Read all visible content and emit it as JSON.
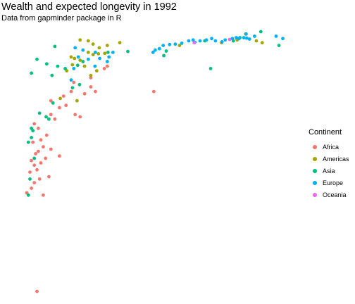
{
  "chart_data": {
    "type": "scatter",
    "title": "Wealth and expected longevity in 1992",
    "subtitle": "Data from gapminder package in R",
    "xlabel": "",
    "ylabel": "",
    "x_scale": "log",
    "xlim": [
      240,
      55000
    ],
    "ylim": [
      23,
      80
    ],
    "grid": false,
    "axes_visible": false,
    "legend": {
      "title": "Continent",
      "position": "right"
    },
    "x_field": "gdpPercap",
    "y_field": "lifeExp",
    "series": [
      {
        "name": "Africa",
        "color": "#F8766D",
        "points": [
          [
            400,
            23.6
          ],
          [
            330,
            45.0
          ],
          [
            360,
            46.0
          ],
          [
            450,
            44.5
          ],
          [
            380,
            47.2
          ],
          [
            420,
            48.0
          ],
          [
            500,
            48.5
          ],
          [
            350,
            49.5
          ],
          [
            400,
            50.0
          ],
          [
            380,
            51.0
          ],
          [
            430,
            51.5
          ],
          [
            360,
            52.0
          ],
          [
            470,
            52.5
          ],
          [
            610,
            53.0
          ],
          [
            390,
            53.5
          ],
          [
            410,
            54.0
          ],
          [
            520,
            54.5
          ],
          [
            450,
            55.0
          ],
          [
            370,
            56.0
          ],
          [
            430,
            56.5
          ],
          [
            480,
            57.5
          ],
          [
            410,
            59.0
          ],
          [
            380,
            60.0
          ],
          [
            560,
            61.0
          ],
          [
            520,
            62.0
          ],
          [
            900,
            61.5
          ],
          [
            820,
            62.0
          ],
          [
            610,
            63.5
          ],
          [
            690,
            64.0
          ],
          [
            520,
            65.0
          ],
          [
            660,
            66.0
          ],
          [
            980,
            66.5
          ],
          [
            1200,
            67.0
          ],
          [
            760,
            67.0
          ],
          [
            1100,
            68.0
          ],
          [
            3600,
            67.0
          ],
          [
            800,
            69.0
          ],
          [
            1100,
            70.0
          ],
          [
            1420,
            72.0
          ],
          [
            1500,
            72.5
          ]
        ]
      },
      {
        "name": "Americas",
        "color": "#A3A500",
        "points": [
          [
            850,
            65.0
          ],
          [
            620,
            65.5
          ],
          [
            1100,
            70.5
          ],
          [
            980,
            72.5
          ],
          [
            1230,
            71.5
          ],
          [
            700,
            71.5
          ],
          [
            780,
            72.8
          ],
          [
            900,
            73.8
          ],
          [
            810,
            74.2
          ],
          [
            760,
            74.5
          ],
          [
            1050,
            75.5
          ],
          [
            1150,
            75.0
          ],
          [
            1430,
            75.3
          ],
          [
            1270,
            75.2
          ],
          [
            1290,
            76.5
          ],
          [
            1500,
            77.0
          ],
          [
            1150,
            77.3
          ],
          [
            1050,
            78.0
          ],
          [
            1900,
            77.6
          ],
          [
            900,
            78.2
          ],
          [
            5850,
            77.0
          ],
          [
            12900,
            77.6
          ],
          [
            17300,
            78.2
          ],
          [
            20300,
            79.5
          ],
          [
            27700,
            77.6
          ],
          [
            24800,
            78.0
          ]
        ]
      },
      {
        "name": "Asia",
        "color": "#00BF7D",
        "points": [
          [
            340,
            44.5
          ],
          [
            350,
            48.0
          ],
          [
            380,
            52.5
          ],
          [
            340,
            56.0
          ],
          [
            360,
            57.0
          ],
          [
            370,
            58.5
          ],
          [
            360,
            59.0
          ],
          [
            500,
            61.0
          ],
          [
            475,
            61.5
          ],
          [
            420,
            62.3
          ],
          [
            540,
            64.5
          ],
          [
            780,
            67.8
          ],
          [
            890,
            68.5
          ],
          [
            530,
            70.5
          ],
          [
            360,
            71.0
          ],
          [
            680,
            72.0
          ],
          [
            590,
            72.5
          ],
          [
            860,
            72.7
          ],
          [
            480,
            73.0
          ],
          [
            950,
            73.5
          ],
          [
            400,
            74.0
          ],
          [
            560,
            76.8
          ],
          [
            1520,
            75.5
          ],
          [
            2210,
            75.7
          ],
          [
            4350,
            74.8
          ],
          [
            4550,
            75.8
          ],
          [
            10500,
            72.0
          ],
          [
            9400,
            78.0
          ],
          [
            16100,
            78.0
          ],
          [
            18200,
            78.7
          ],
          [
            38000,
            77.0
          ],
          [
            27000,
            80.0
          ]
        ]
      },
      {
        "name": "Europe",
        "color": "#00B0F6",
        "points": [
          [
            760,
            69.5
          ],
          [
            800,
            72.0
          ],
          [
            1190,
            72.5
          ],
          [
            1050,
            74.0
          ],
          [
            870,
            74.5
          ],
          [
            1300,
            74.2
          ],
          [
            1500,
            73.5
          ],
          [
            950,
            76.0
          ],
          [
            820,
            76.5
          ],
          [
            1200,
            75.5
          ],
          [
            1550,
            74.5
          ],
          [
            1670,
            75.5
          ],
          [
            3550,
            75.5
          ],
          [
            3700,
            76.0
          ],
          [
            4000,
            76.3
          ],
          [
            4300,
            77.0
          ],
          [
            4850,
            77.2
          ],
          [
            5400,
            77.3
          ],
          [
            6100,
            77.5
          ],
          [
            6950,
            78.0
          ],
          [
            7550,
            78.2
          ],
          [
            7800,
            77.7
          ],
          [
            8600,
            78.0
          ],
          [
            9700,
            78.2
          ],
          [
            10700,
            78.5
          ],
          [
            11500,
            78.0
          ],
          [
            13000,
            77.8
          ],
          [
            13800,
            78.2
          ],
          [
            15800,
            78.5
          ],
          [
            17000,
            78.7
          ],
          [
            17900,
            78.5
          ],
          [
            19600,
            78.7
          ],
          [
            20700,
            78.6
          ],
          [
            20500,
            79.5
          ],
          [
            21800,
            78.4
          ],
          [
            24000,
            79.0
          ],
          [
            36000,
            79.0
          ],
          [
            40800,
            78.5
          ]
        ]
      },
      {
        "name": "Oceania",
        "color": "#E76BF3",
        "points": [
          [
            7700,
            77.6
          ],
          [
            15000,
            78.3
          ]
        ]
      }
    ]
  },
  "legend": {
    "title": "Continent",
    "items": [
      {
        "label": "Africa",
        "color": "#F8766D"
      },
      {
        "label": "Americas",
        "color": "#A3A500"
      },
      {
        "label": "Asia",
        "color": "#00BF7D"
      },
      {
        "label": "Europe",
        "color": "#00B0F6"
      },
      {
        "label": "Oceania",
        "color": "#E76BF3"
      }
    ]
  }
}
